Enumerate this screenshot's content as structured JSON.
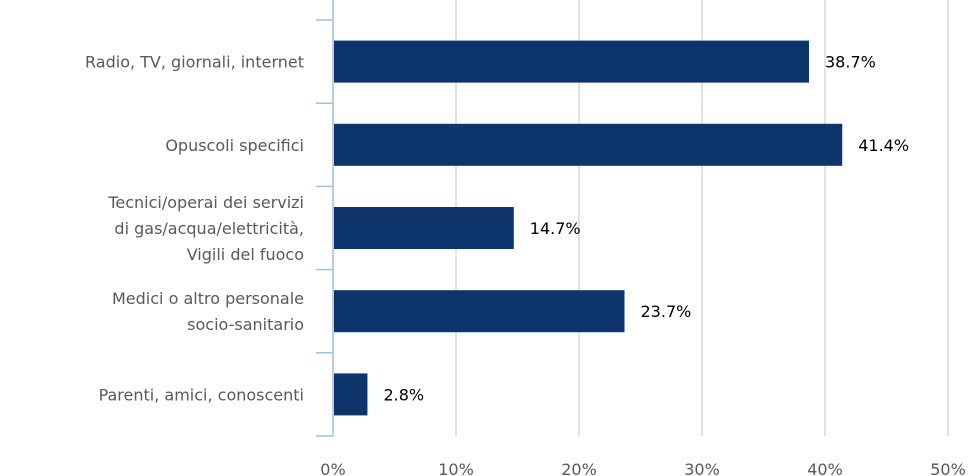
{
  "chart_data": {
    "type": "bar",
    "orientation": "horizontal",
    "title": "",
    "categories": [
      "Radio, TV, giornali, internet",
      "Opuscoli specifici",
      "Tecnici/operai dei servizi di gas/acqua/elettricità, Vigili del fuoco",
      "Medici o altro personale socio-sanitario",
      "Parenti, amici, conoscenti"
    ],
    "category_lines": [
      [
        "Radio, TV, giornali, internet"
      ],
      [
        "Opuscoli specifici"
      ],
      [
        "Tecnici/operai dei servizi",
        "di gas/acqua/elettricità,",
        "Vigili del fuoco"
      ],
      [
        "Medici o altro personale",
        "socio-sanitario"
      ],
      [
        "Parenti, amici, conoscenti"
      ]
    ],
    "values": [
      38.7,
      41.4,
      14.7,
      23.7,
      2.8
    ],
    "data_labels": [
      "38.7%",
      "41.4%",
      "14.7%",
      "23.7%",
      "2.8%"
    ],
    "xlim": [
      0,
      50
    ],
    "x_ticks": [
      0,
      10,
      20,
      30,
      40,
      50
    ],
    "x_tick_labels": [
      "0%",
      "10%",
      "20%",
      "30%",
      "40%",
      "50%"
    ],
    "xlabel": "",
    "ylabel": "",
    "grid": "vertical",
    "legend": "none",
    "colors": {
      "bar": "#0d356b",
      "grid": "#d9d9d9",
      "axis": "#a6bedb",
      "label": "#595959",
      "value_label": "#000000"
    }
  }
}
